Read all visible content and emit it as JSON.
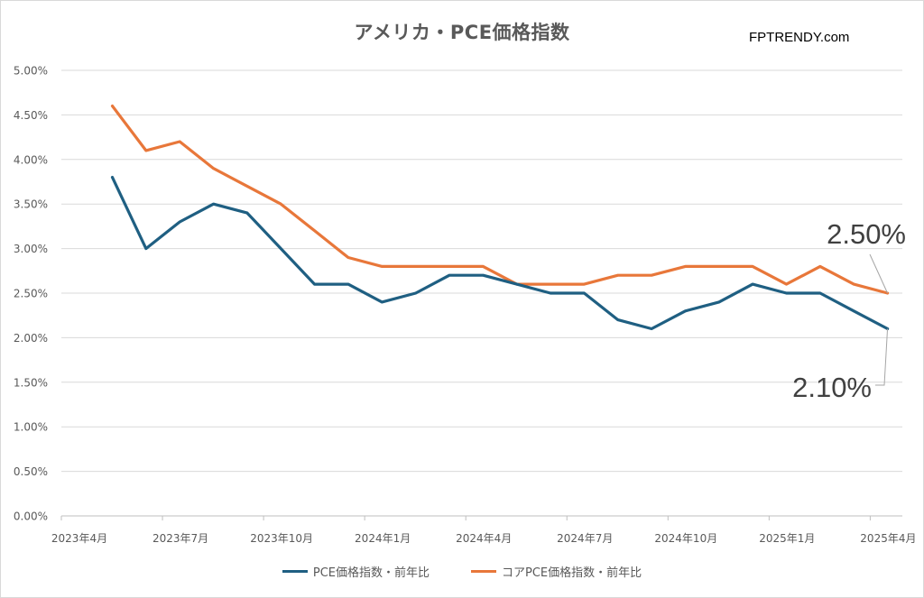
{
  "title": "アメリカ・PCE価格指数",
  "brand": "FPTRENDY.com",
  "colors": {
    "pce": "#1f5f82",
    "core_pce": "#e8773a",
    "grid": "#d9d9d9",
    "axis_text": "#595959"
  },
  "chart_data": {
    "type": "line",
    "title": "アメリカ・PCE価格指数",
    "y_ticks": [
      "0.00%",
      "0.50%",
      "1.00%",
      "1.50%",
      "2.00%",
      "2.50%",
      "3.00%",
      "3.50%",
      "4.00%",
      "4.50%",
      "5.00%"
    ],
    "ylim": [
      0,
      5
    ],
    "x_ticks": [
      "2023年4月",
      "2023年7月",
      "2023年10月",
      "2024年1月",
      "2024年4月",
      "2024年7月",
      "2024年10月",
      "2025年1月",
      "2025年4月"
    ],
    "x": [
      "2023-05",
      "2023-06",
      "2023-07",
      "2023-08",
      "2023-09",
      "2023-10",
      "2023-11",
      "2023-12",
      "2024-01",
      "2024-02",
      "2024-03",
      "2024-04",
      "2024-05",
      "2024-06",
      "2024-07",
      "2024-08",
      "2024-09",
      "2024-10",
      "2024-11",
      "2024-12",
      "2025-01",
      "2025-02",
      "2025-03",
      "2025-04"
    ],
    "series": [
      {
        "name": "PCE価格指数・前年比",
        "values": [
          3.8,
          3.0,
          3.3,
          3.5,
          3.4,
          3.0,
          2.6,
          2.6,
          2.4,
          2.5,
          2.7,
          2.7,
          2.6,
          2.5,
          2.5,
          2.2,
          2.1,
          2.3,
          2.4,
          2.6,
          2.5,
          2.5,
          2.3,
          2.1
        ]
      },
      {
        "name": "コアPCE価格指数・前年比",
        "values": [
          4.6,
          4.1,
          4.2,
          3.9,
          3.7,
          3.5,
          3.2,
          2.9,
          2.8,
          2.8,
          2.8,
          2.8,
          2.6,
          2.6,
          2.6,
          2.7,
          2.7,
          2.8,
          2.8,
          2.8,
          2.6,
          2.8,
          2.6,
          2.5
        ]
      }
    ],
    "annotations": [
      {
        "text": "2.50%",
        "series": 1,
        "point": "2025-04"
      },
      {
        "text": "2.10%",
        "series": 0,
        "point": "2025-04"
      }
    ],
    "grid": true,
    "legend": "bottom"
  },
  "legend": [
    {
      "label": "PCE価格指数・前年比",
      "color": "#1f5f82"
    },
    {
      "label": "コアPCE価格指数・前年比",
      "color": "#e8773a"
    }
  ]
}
